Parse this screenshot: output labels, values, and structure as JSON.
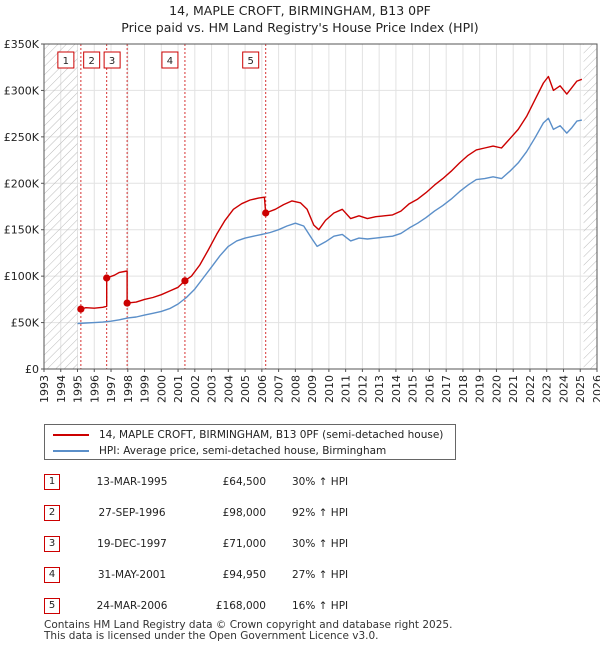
{
  "title_line1": "14, MAPLE CROFT, BIRMINGHAM, B13 0PF",
  "title_line2": "Price paid vs. HM Land Registry's House Price Index (HPI)",
  "colors": {
    "price_line": "#cc0000",
    "hpi_line": "#5b8fc9",
    "hatch": "#bbbbbb",
    "marker_box": "#cc0000"
  },
  "chart_data": {
    "type": "line",
    "xlim": [
      1993,
      2026
    ],
    "ylim": [
      0,
      350000
    ],
    "y_ticks": [
      0,
      50000,
      100000,
      150000,
      200000,
      250000,
      300000,
      350000
    ],
    "y_tick_labels": [
      "£0",
      "£50K",
      "£100K",
      "£150K",
      "£200K",
      "£250K",
      "£300K",
      "£350K"
    ],
    "x_ticks": [
      1993,
      1994,
      1995,
      1996,
      1997,
      1998,
      1999,
      2000,
      2001,
      2002,
      2003,
      2004,
      2005,
      2006,
      2007,
      2008,
      2009,
      2010,
      2011,
      2012,
      2013,
      2014,
      2015,
      2016,
      2017,
      2018,
      2019,
      2020,
      2021,
      2022,
      2023,
      2024,
      2025,
      2026
    ],
    "hatch_before": 1995.0,
    "hatch_after": 2025.2,
    "series": [
      {
        "name": "14, MAPLE CROFT, BIRMINGHAM, B13 0PF (semi-detached house)",
        "color": "#cc0000",
        "points": [
          [
            1995.2,
            64500
          ],
          [
            1995.5,
            66000
          ],
          [
            1996.0,
            65500
          ],
          [
            1996.5,
            66500
          ],
          [
            1996.74,
            67500
          ],
          [
            1996.74,
            98000
          ],
          [
            1997.2,
            101000
          ],
          [
            1997.5,
            104000
          ],
          [
            1997.8,
            105000
          ],
          [
            1997.96,
            105500
          ],
          [
            1997.96,
            71000
          ],
          [
            1998.5,
            72000
          ],
          [
            1999.0,
            75000
          ],
          [
            1999.5,
            77000
          ],
          [
            2000.0,
            80000
          ],
          [
            2000.5,
            84000
          ],
          [
            2001.0,
            88000
          ],
          [
            2001.41,
            94950
          ],
          [
            2001.8,
            100000
          ],
          [
            2002.3,
            112000
          ],
          [
            2002.8,
            128000
          ],
          [
            2003.3,
            145000
          ],
          [
            2003.8,
            160000
          ],
          [
            2004.3,
            172000
          ],
          [
            2004.8,
            178000
          ],
          [
            2005.3,
            182000
          ],
          [
            2005.8,
            184000
          ],
          [
            2006.15,
            185000
          ],
          [
            2006.23,
            168000
          ],
          [
            2006.8,
            172000
          ],
          [
            2007.3,
            177000
          ],
          [
            2007.8,
            181000
          ],
          [
            2008.3,
            179000
          ],
          [
            2008.7,
            172000
          ],
          [
            2009.1,
            155000
          ],
          [
            2009.4,
            150000
          ],
          [
            2009.8,
            160000
          ],
          [
            2010.3,
            168000
          ],
          [
            2010.8,
            172000
          ],
          [
            2011.3,
            162000
          ],
          [
            2011.8,
            165000
          ],
          [
            2012.3,
            162000
          ],
          [
            2012.8,
            164000
          ],
          [
            2013.3,
            165000
          ],
          [
            2013.8,
            166000
          ],
          [
            2014.3,
            170000
          ],
          [
            2014.8,
            178000
          ],
          [
            2015.3,
            183000
          ],
          [
            2015.8,
            190000
          ],
          [
            2016.3,
            198000
          ],
          [
            2016.8,
            205000
          ],
          [
            2017.3,
            213000
          ],
          [
            2017.8,
            222000
          ],
          [
            2018.3,
            230000
          ],
          [
            2018.8,
            236000
          ],
          [
            2019.3,
            238000
          ],
          [
            2019.8,
            240000
          ],
          [
            2020.3,
            238000
          ],
          [
            2020.8,
            248000
          ],
          [
            2021.3,
            258000
          ],
          [
            2021.8,
            272000
          ],
          [
            2022.3,
            290000
          ],
          [
            2022.8,
            308000
          ],
          [
            2023.1,
            315000
          ],
          [
            2023.4,
            300000
          ],
          [
            2023.8,
            305000
          ],
          [
            2024.2,
            296000
          ],
          [
            2024.5,
            303000
          ],
          [
            2024.8,
            310000
          ],
          [
            2025.1,
            312000
          ]
        ]
      },
      {
        "name": "HPI: Average price, semi-detached house, Birmingham",
        "color": "#5b8fc9",
        "points": [
          [
            1995.0,
            49000
          ],
          [
            1995.5,
            49500
          ],
          [
            1996.0,
            50000
          ],
          [
            1996.5,
            50500
          ],
          [
            1997.0,
            51500
          ],
          [
            1997.5,
            53000
          ],
          [
            1998.0,
            55000
          ],
          [
            1998.5,
            56000
          ],
          [
            1999.0,
            58000
          ],
          [
            1999.5,
            60000
          ],
          [
            2000.0,
            62000
          ],
          [
            2000.5,
            65000
          ],
          [
            2001.0,
            70000
          ],
          [
            2001.5,
            77000
          ],
          [
            2002.0,
            86000
          ],
          [
            2002.5,
            98000
          ],
          [
            2003.0,
            110000
          ],
          [
            2003.5,
            122000
          ],
          [
            2004.0,
            132000
          ],
          [
            2004.5,
            138000
          ],
          [
            2005.0,
            141000
          ],
          [
            2005.5,
            143000
          ],
          [
            2006.0,
            145000
          ],
          [
            2006.5,
            147000
          ],
          [
            2007.0,
            150000
          ],
          [
            2007.5,
            154000
          ],
          [
            2008.0,
            157000
          ],
          [
            2008.5,
            154000
          ],
          [
            2009.0,
            140000
          ],
          [
            2009.3,
            132000
          ],
          [
            2009.8,
            137000
          ],
          [
            2010.3,
            143000
          ],
          [
            2010.8,
            145000
          ],
          [
            2011.3,
            138000
          ],
          [
            2011.8,
            141000
          ],
          [
            2012.3,
            140000
          ],
          [
            2012.8,
            141000
          ],
          [
            2013.3,
            142000
          ],
          [
            2013.8,
            143000
          ],
          [
            2014.3,
            146000
          ],
          [
            2014.8,
            152000
          ],
          [
            2015.3,
            157000
          ],
          [
            2015.8,
            163000
          ],
          [
            2016.3,
            170000
          ],
          [
            2016.8,
            176000
          ],
          [
            2017.3,
            183000
          ],
          [
            2017.8,
            191000
          ],
          [
            2018.3,
            198000
          ],
          [
            2018.8,
            204000
          ],
          [
            2019.3,
            205000
          ],
          [
            2019.8,
            207000
          ],
          [
            2020.3,
            205000
          ],
          [
            2020.8,
            213000
          ],
          [
            2021.3,
            222000
          ],
          [
            2021.8,
            234000
          ],
          [
            2022.3,
            249000
          ],
          [
            2022.8,
            265000
          ],
          [
            2023.1,
            270000
          ],
          [
            2023.4,
            258000
          ],
          [
            2023.8,
            262000
          ],
          [
            2024.2,
            254000
          ],
          [
            2024.5,
            260000
          ],
          [
            2024.8,
            267000
          ],
          [
            2025.1,
            268000
          ]
        ]
      }
    ],
    "sales": [
      {
        "n": "1",
        "x": 1995.2,
        "y": 64500
      },
      {
        "n": "2",
        "x": 1996.74,
        "y": 98000
      },
      {
        "n": "3",
        "x": 1997.96,
        "y": 71000
      },
      {
        "n": "4",
        "x": 2001.41,
        "y": 94950
      },
      {
        "n": "5",
        "x": 2006.23,
        "y": 168000
      }
    ]
  },
  "legend": {
    "price_label": "14, MAPLE CROFT, BIRMINGHAM, B13 0PF (semi-detached house)",
    "hpi_label": "HPI: Average price, semi-detached house, Birmingham"
  },
  "transactions": [
    {
      "n": "1",
      "date": "13-MAR-1995",
      "price": "£64,500",
      "hpi": "30% ↑ HPI"
    },
    {
      "n": "2",
      "date": "27-SEP-1996",
      "price": "£98,000",
      "hpi": "92% ↑ HPI"
    },
    {
      "n": "3",
      "date": "19-DEC-1997",
      "price": "£71,000",
      "hpi": "30% ↑ HPI"
    },
    {
      "n": "4",
      "date": "31-MAY-2001",
      "price": "£94,950",
      "hpi": "27% ↑ HPI"
    },
    {
      "n": "5",
      "date": "24-MAR-2006",
      "price": "£168,000",
      "hpi": "16% ↑ HPI"
    }
  ],
  "footer": {
    "line1": "Contains HM Land Registry data © Crown copyright and database right 2025.",
    "line2": "This data is licensed under the Open Government Licence v3.0."
  }
}
